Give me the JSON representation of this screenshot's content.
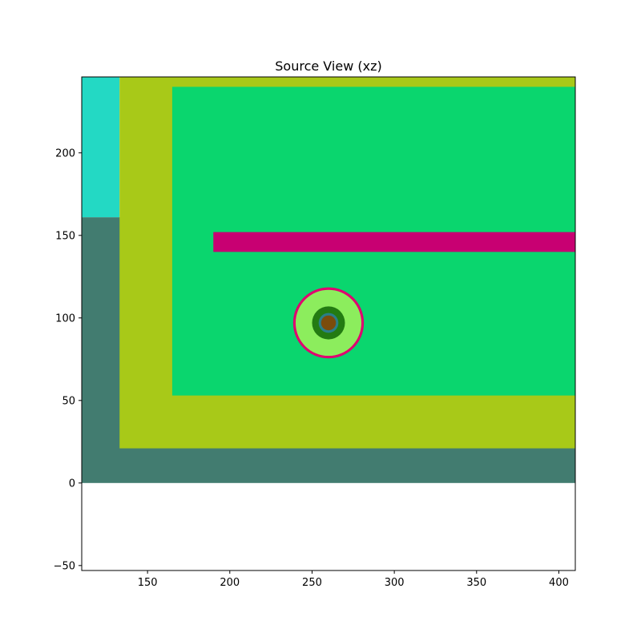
{
  "chart_data": {
    "type": "heatmap",
    "title": "Source View (xz)",
    "xlabel": "",
    "ylabel": "",
    "xlim": [
      110,
      410
    ],
    "ylim": [
      -53,
      246
    ],
    "xticks": [
      150,
      200,
      250,
      300,
      350,
      400
    ],
    "yticks": [
      -50,
      0,
      50,
      100,
      150,
      200
    ],
    "xtick_labels": [
      "150",
      "200",
      "250",
      "300",
      "350",
      "400"
    ],
    "ytick_labels": [
      "−50",
      "0",
      "50",
      "100",
      "150",
      "200"
    ],
    "grid": false,
    "regions": [
      {
        "name": "outer-left-lower",
        "shape": "rect",
        "x": [
          110,
          410
        ],
        "y": [
          0,
          161
        ],
        "color": "#427c70"
      },
      {
        "name": "outer-left-upper",
        "shape": "rect",
        "x": [
          110,
          133
        ],
        "y": [
          161,
          246
        ],
        "color": "#23d9c4"
      },
      {
        "name": "yellow-layer",
        "shape": "rect",
        "x": [
          133,
          410
        ],
        "y": [
          21,
          246
        ],
        "color": "#a8c918"
      },
      {
        "name": "green-interior",
        "shape": "rect",
        "x": [
          165,
          410
        ],
        "y": [
          53,
          240
        ],
        "color": "#0ad66e"
      },
      {
        "name": "magenta-bar",
        "shape": "rect",
        "x": [
          190,
          410
        ],
        "y": [
          140,
          152
        ],
        "color": "#c80072"
      },
      {
        "name": "ring-outer",
        "shape": "circle",
        "cx": 260,
        "cy": 97,
        "r": 21.5,
        "color": "#e00070"
      },
      {
        "name": "disk-light-green",
        "shape": "circle",
        "cx": 260,
        "cy": 97,
        "r": 20.0,
        "color": "#8ced5d"
      },
      {
        "name": "disk-dark-green",
        "shape": "circle",
        "cx": 260,
        "cy": 97,
        "r": 10.0,
        "color": "#237b12"
      },
      {
        "name": "ring-teal",
        "shape": "circle",
        "cx": 260,
        "cy": 97,
        "r": 6.0,
        "color": "#2a7e88"
      },
      {
        "name": "core-brown",
        "shape": "circle",
        "cx": 260,
        "cy": 97,
        "r": 4.5,
        "color": "#7b4c0c"
      }
    ]
  }
}
